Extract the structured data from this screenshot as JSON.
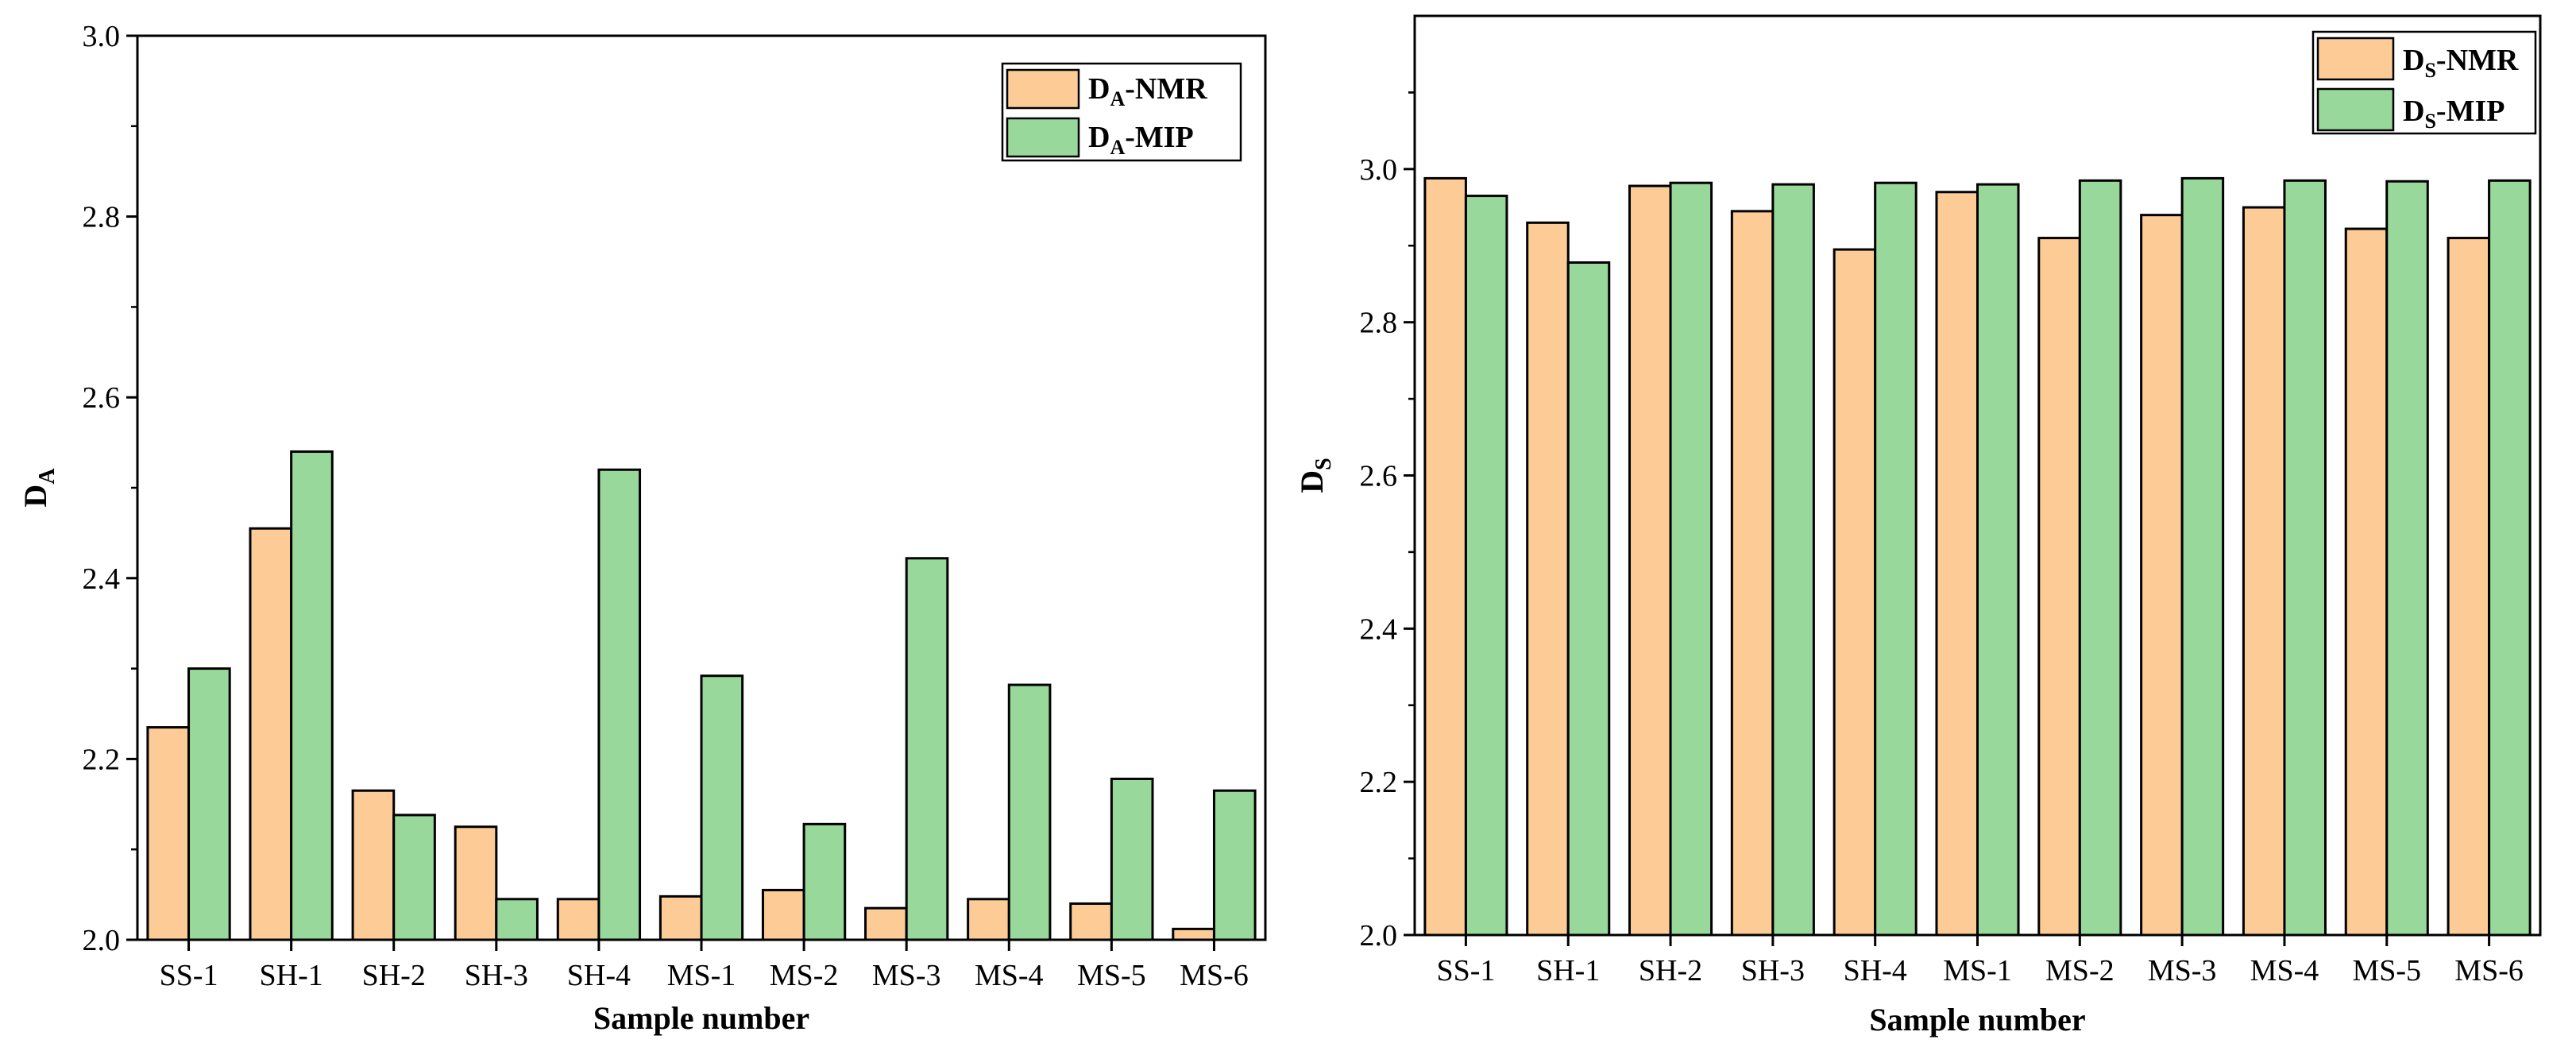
{
  "colors": {
    "nmr": "#fdcc96",
    "mip": "#98d89a",
    "stroke": "#000000"
  },
  "chart_data": [
    {
      "type": "bar",
      "categories": [
        "SS-1",
        "SH-1",
        "SH-2",
        "SH-3",
        "SH-4",
        "MS-1",
        "MS-2",
        "MS-3",
        "MS-4",
        "MS-5",
        "MS-6"
      ],
      "series": [
        {
          "name": "DA-NMR",
          "label_main": "D",
          "label_sub": "A",
          "label_rest": "-NMR",
          "values": [
            2.235,
            2.455,
            2.165,
            2.125,
            2.045,
            2.048,
            2.055,
            2.035,
            2.045,
            2.04,
            2.012
          ]
        },
        {
          "name": "DA-MIP",
          "label_main": "D",
          "label_sub": "A",
          "label_rest": "-MIP",
          "values": [
            2.3,
            2.54,
            2.138,
            2.045,
            2.52,
            2.292,
            2.128,
            2.422,
            2.282,
            2.178,
            2.165
          ]
        }
      ],
      "xlabel": "Sample number",
      "ylabel_main": "D",
      "ylabel_sub": "A",
      "ylim": [
        2.0,
        3.0
      ],
      "yticks": [
        "2.0",
        "2.2",
        "2.4",
        "2.6",
        "2.8",
        "3.0"
      ],
      "legend_position": "top-right"
    },
    {
      "type": "bar",
      "categories": [
        "SS-1",
        "SH-1",
        "SH-2",
        "SH-3",
        "SH-4",
        "MS-1",
        "MS-2",
        "MS-3",
        "MS-4",
        "MS-5",
        "MS-6"
      ],
      "series": [
        {
          "name": "DS-NMR",
          "label_main": "D",
          "label_sub": "S",
          "label_rest": "-NMR",
          "values": [
            2.988,
            2.93,
            2.978,
            2.945,
            2.895,
            2.97,
            2.91,
            2.94,
            2.95,
            2.922,
            2.91
          ]
        },
        {
          "name": "DS-MIP",
          "label_main": "D",
          "label_sub": "S",
          "label_rest": "-MIP",
          "values": [
            2.965,
            2.878,
            2.982,
            2.98,
            2.982,
            2.98,
            2.985,
            2.988,
            2.985,
            2.984,
            2.985
          ]
        }
      ],
      "xlabel": "Sample number",
      "ylabel_main": "D",
      "ylabel_sub": "S",
      "ylim": [
        2.0,
        3.2
      ],
      "yticks": [
        "2.0",
        "2.2",
        "2.4",
        "2.6",
        "2.8",
        "3.0"
      ],
      "legend_position": "top-right"
    }
  ]
}
